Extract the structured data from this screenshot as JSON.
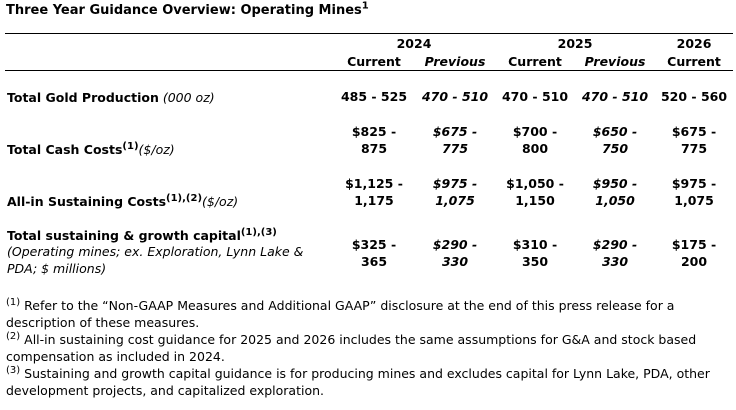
{
  "title": {
    "text": "Three Year Guidance Overview: Operating Mines",
    "sup": "1"
  },
  "header": {
    "years": [
      "2024",
      "2025",
      "2026"
    ],
    "subheaders": [
      "Current",
      "Previous",
      "Current",
      "Previous",
      "Current"
    ]
  },
  "rows": [
    {
      "label": "Total Gold Production",
      "unit": " (000 oz)",
      "cells": [
        [
          "485 - 525"
        ],
        [
          "470 - 510"
        ],
        [
          "470 - 510"
        ],
        [
          "470 - 510"
        ],
        [
          "520 - 560"
        ]
      ]
    },
    {
      "label": "Total Cash Costs",
      "sup": "(1)",
      "unit": "($/oz)",
      "cells": [
        [
          "$825 -",
          "875"
        ],
        [
          "$675 -",
          "775"
        ],
        [
          "$700 -",
          "800"
        ],
        [
          "$650 -",
          "750"
        ],
        [
          "$675 -",
          "775"
        ]
      ]
    },
    {
      "label": "All-in Sustaining Costs",
      "sup": "(1),(2)",
      "unit": "($/oz)",
      "cells": [
        [
          "$1,125 -",
          "1,175"
        ],
        [
          "$975 -",
          "1,075"
        ],
        [
          "$1,050 -",
          "1,150"
        ],
        [
          "$950 -",
          "1,050"
        ],
        [
          "$975 -",
          "1,075"
        ]
      ]
    },
    {
      "label": "Total sustaining & growth capital",
      "sup": "(1),(3)",
      "note": "(Operating mines; ex. Exploration, Lynn Lake & PDA; $ millions)",
      "cells": [
        [
          "$325 -",
          "365"
        ],
        [
          "$290 -",
          "330"
        ],
        [
          "$310 -",
          "350"
        ],
        [
          "$290 -",
          "330"
        ],
        [
          "$175 -",
          "200"
        ]
      ]
    }
  ],
  "footnotes": [
    {
      "mark": "(1)",
      "text": "Refer to the “Non-GAAP Measures and Additional GAAP” disclosure at the end of this press release for a description of these measures."
    },
    {
      "mark": "(2)",
      "text": "All-in sustaining cost guidance for 2025 and 2026 includes the same assumptions for G&A and stock based compensation as included in 2024."
    },
    {
      "mark": "(3)",
      "text": "Sustaining and growth capital guidance is for producing mines and excludes capital for Lynn Lake, PDA, other development projects, and capitalized exploration."
    }
  ]
}
